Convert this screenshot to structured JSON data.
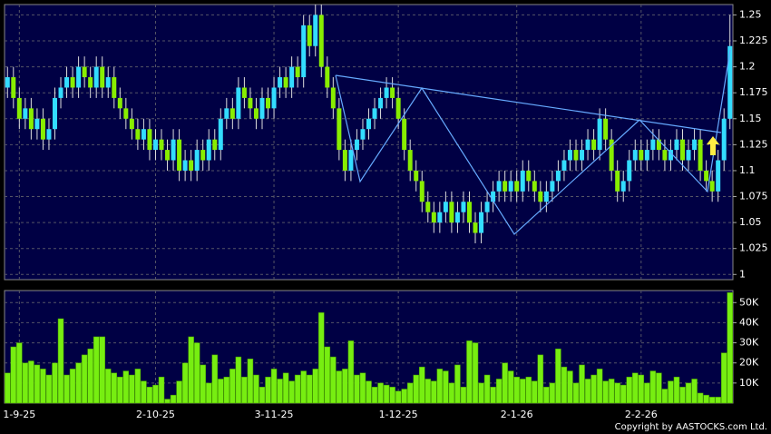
{
  "chart_data": [
    {
      "type": "candlestick",
      "up_color": "#33ddff",
      "down_color": "#88ee00",
      "grid": true,
      "xlim": [
        -0.5,
        122.5
      ],
      "xticks": [
        {
          "value": 2,
          "label": "1-9-25"
        },
        {
          "value": 25,
          "label": "2-10-25"
        },
        {
          "value": 45,
          "label": "3-11-25"
        },
        {
          "value": 66,
          "label": "1-12-25"
        },
        {
          "value": 86,
          "label": "2-1-26"
        },
        {
          "value": 107,
          "label": "2-2-26"
        }
      ],
      "ylim": [
        0.995,
        1.26
      ],
      "yticks": [
        1,
        1.025,
        1.05,
        1.075,
        1.1,
        1.125,
        1.15,
        1.175,
        1.2,
        1.225,
        1.25
      ],
      "open": [
        1.18,
        1.19,
        1.17,
        1.15,
        1.16,
        1.14,
        1.15,
        1.13,
        1.14,
        1.17,
        1.18,
        1.19,
        1.18,
        1.2,
        1.19,
        1.18,
        1.2,
        1.18,
        1.19,
        1.17,
        1.16,
        1.15,
        1.14,
        1.13,
        1.14,
        1.12,
        1.13,
        1.12,
        1.11,
        1.13,
        1.1,
        1.11,
        1.1,
        1.12,
        1.11,
        1.13,
        1.12,
        1.15,
        1.16,
        1.15,
        1.18,
        1.17,
        1.16,
        1.15,
        1.17,
        1.16,
        1.18,
        1.19,
        1.18,
        1.2,
        1.19,
        1.24,
        1.22,
        1.25,
        1.2,
        1.18,
        1.16,
        1.12,
        1.1,
        1.12,
        1.13,
        1.14,
        1.15,
        1.16,
        1.17,
        1.18,
        1.17,
        1.15,
        1.12,
        1.1,
        1.09,
        1.07,
        1.06,
        1.05,
        1.06,
        1.07,
        1.05,
        1.06,
        1.07,
        1.05,
        1.04,
        1.06,
        1.07,
        1.08,
        1.09,
        1.08,
        1.09,
        1.08,
        1.1,
        1.09,
        1.08,
        1.07,
        1.08,
        1.09,
        1.1,
        1.11,
        1.12,
        1.11,
        1.12,
        1.13,
        1.12,
        1.15,
        1.13,
        1.1,
        1.08,
        1.09,
        1.11,
        1.12,
        1.11,
        1.12,
        1.13,
        1.12,
        1.11,
        1.12,
        1.13,
        1.11,
        1.12,
        1.13,
        1.1,
        1.09,
        1.08,
        1.11,
        1.15
      ],
      "high": [
        1.2,
        1.2,
        1.18,
        1.17,
        1.17,
        1.16,
        1.16,
        1.15,
        1.18,
        1.19,
        1.2,
        1.2,
        1.21,
        1.21,
        1.2,
        1.21,
        1.21,
        1.2,
        1.2,
        1.18,
        1.17,
        1.16,
        1.15,
        1.15,
        1.15,
        1.14,
        1.14,
        1.13,
        1.14,
        1.14,
        1.12,
        1.12,
        1.13,
        1.13,
        1.14,
        1.14,
        1.16,
        1.17,
        1.17,
        1.19,
        1.19,
        1.18,
        1.17,
        1.18,
        1.18,
        1.19,
        1.2,
        1.2,
        1.21,
        1.21,
        1.25,
        1.25,
        1.26,
        1.26,
        1.21,
        1.19,
        1.17,
        1.13,
        1.13,
        1.14,
        1.15,
        1.16,
        1.17,
        1.18,
        1.19,
        1.19,
        1.18,
        1.16,
        1.13,
        1.11,
        1.1,
        1.08,
        1.07,
        1.07,
        1.08,
        1.08,
        1.07,
        1.08,
        1.08,
        1.06,
        1.07,
        1.08,
        1.09,
        1.1,
        1.1,
        1.1,
        1.1,
        1.11,
        1.11,
        1.1,
        1.09,
        1.09,
        1.1,
        1.11,
        1.12,
        1.13,
        1.13,
        1.13,
        1.14,
        1.14,
        1.16,
        1.16,
        1.14,
        1.11,
        1.1,
        1.12,
        1.13,
        1.13,
        1.13,
        1.14,
        1.14,
        1.13,
        1.13,
        1.14,
        1.14,
        1.13,
        1.14,
        1.14,
        1.11,
        1.1,
        1.12,
        1.16,
        1.25
      ],
      "low": [
        1.17,
        1.16,
        1.14,
        1.14,
        1.13,
        1.13,
        1.12,
        1.12,
        1.13,
        1.16,
        1.17,
        1.17,
        1.17,
        1.18,
        1.17,
        1.17,
        1.17,
        1.17,
        1.16,
        1.15,
        1.14,
        1.13,
        1.12,
        1.12,
        1.11,
        1.11,
        1.11,
        1.1,
        1.1,
        1.09,
        1.09,
        1.09,
        1.09,
        1.1,
        1.1,
        1.11,
        1.11,
        1.14,
        1.14,
        1.14,
        1.16,
        1.15,
        1.14,
        1.14,
        1.15,
        1.15,
        1.17,
        1.17,
        1.17,
        1.18,
        1.18,
        1.21,
        1.21,
        1.19,
        1.17,
        1.15,
        1.11,
        1.09,
        1.09,
        1.11,
        1.12,
        1.13,
        1.14,
        1.15,
        1.16,
        1.16,
        1.14,
        1.11,
        1.09,
        1.08,
        1.06,
        1.05,
        1.04,
        1.04,
        1.05,
        1.04,
        1.04,
        1.05,
        1.04,
        1.03,
        1.03,
        1.05,
        1.06,
        1.07,
        1.07,
        1.07,
        1.07,
        1.07,
        1.08,
        1.07,
        1.06,
        1.06,
        1.07,
        1.08,
        1.09,
        1.1,
        1.1,
        1.1,
        1.11,
        1.11,
        1.11,
        1.12,
        1.09,
        1.07,
        1.07,
        1.08,
        1.1,
        1.1,
        1.1,
        1.11,
        1.11,
        1.1,
        1.1,
        1.11,
        1.1,
        1.1,
        1.11,
        1.09,
        1.08,
        1.07,
        1.07,
        1.1,
        1.14
      ],
      "close": [
        1.19,
        1.17,
        1.15,
        1.16,
        1.14,
        1.15,
        1.13,
        1.14,
        1.17,
        1.18,
        1.19,
        1.18,
        1.2,
        1.19,
        1.18,
        1.2,
        1.18,
        1.19,
        1.17,
        1.16,
        1.15,
        1.14,
        1.13,
        1.14,
        1.12,
        1.13,
        1.12,
        1.11,
        1.13,
        1.1,
        1.11,
        1.1,
        1.12,
        1.11,
        1.13,
        1.12,
        1.15,
        1.16,
        1.15,
        1.18,
        1.17,
        1.16,
        1.15,
        1.17,
        1.16,
        1.18,
        1.19,
        1.18,
        1.2,
        1.19,
        1.24,
        1.22,
        1.25,
        1.2,
        1.18,
        1.16,
        1.12,
        1.1,
        1.12,
        1.13,
        1.14,
        1.15,
        1.16,
        1.17,
        1.18,
        1.17,
        1.15,
        1.12,
        1.1,
        1.09,
        1.07,
        1.06,
        1.05,
        1.06,
        1.07,
        1.05,
        1.06,
        1.07,
        1.05,
        1.04,
        1.06,
        1.07,
        1.08,
        1.09,
        1.08,
        1.09,
        1.08,
        1.1,
        1.09,
        1.08,
        1.07,
        1.08,
        1.09,
        1.1,
        1.11,
        1.12,
        1.11,
        1.12,
        1.13,
        1.12,
        1.15,
        1.13,
        1.1,
        1.08,
        1.09,
        1.11,
        1.12,
        1.11,
        1.12,
        1.13,
        1.12,
        1.11,
        1.12,
        1.13,
        1.11,
        1.12,
        1.13,
        1.1,
        1.09,
        1.08,
        1.11,
        1.15,
        1.22
      ]
    },
    {
      "type": "bar",
      "color": "#77ee11",
      "grid": true,
      "xlim": [
        -0.5,
        122.5
      ],
      "ylim": [
        0,
        56000
      ],
      "yticks": [
        {
          "value": 10000,
          "label": "10K"
        },
        {
          "value": 20000,
          "label": "20K"
        },
        {
          "value": 30000,
          "label": "30K"
        },
        {
          "value": 40000,
          "label": "40K"
        },
        {
          "value": 50000,
          "label": "50K"
        }
      ],
      "values": [
        15000,
        28000,
        30000,
        20000,
        21000,
        19000,
        17000,
        14000,
        20000,
        42000,
        14000,
        17000,
        20000,
        24000,
        27000,
        33000,
        33000,
        17000,
        15000,
        13000,
        16000,
        14000,
        17000,
        11000,
        8000,
        9000,
        13000,
        2000,
        4000,
        11000,
        20000,
        33000,
        30000,
        19000,
        10000,
        24000,
        12000,
        13000,
        17000,
        23000,
        13000,
        22000,
        14000,
        8000,
        13000,
        17000,
        12000,
        15000,
        11000,
        14000,
        16000,
        14000,
        17000,
        45000,
        28000,
        23000,
        16000,
        17000,
        31000,
        14000,
        15000,
        11000,
        8000,
        10000,
        9000,
        8000,
        6000,
        7000,
        10000,
        14000,
        18000,
        12000,
        11000,
        17000,
        16000,
        10000,
        19000,
        8000,
        31000,
        30000,
        10000,
        14000,
        8000,
        12000,
        20000,
        16000,
        13000,
        12000,
        13000,
        11000,
        24000,
        8000,
        10000,
        27000,
        18000,
        16000,
        10000,
        19000,
        12000,
        14000,
        17000,
        11000,
        12000,
        10000,
        9000,
        13000,
        15000,
        14000,
        10000,
        16000,
        15000,
        7000,
        11000,
        13000,
        8000,
        10000,
        12000,
        5000,
        4000,
        3000,
        3000,
        25000,
        55000
      ]
    }
  ],
  "copyright": "Copyright by AASTOCKS.com Ltd."
}
